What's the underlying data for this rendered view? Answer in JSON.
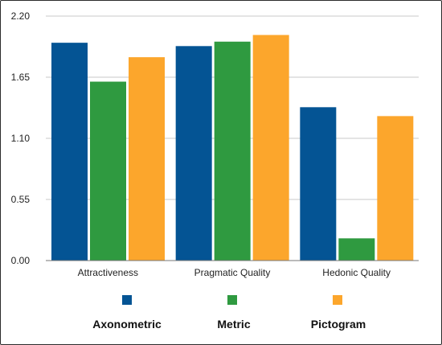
{
  "chart_data": {
    "type": "bar",
    "categories": [
      "Attractiveness",
      "Pragmatic Quality",
      "Hedonic Quality"
    ],
    "series": [
      {
        "name": "Axonometric",
        "values": [
          1.96,
          1.93,
          1.38
        ],
        "color": "#045494"
      },
      {
        "name": "Metric",
        "values": [
          1.61,
          1.97,
          0.2
        ],
        "color": "#2f9a40"
      },
      {
        "name": "Pictogram",
        "values": [
          1.83,
          2.03,
          1.3
        ],
        "color": "#fca62c"
      }
    ],
    "yticks": [
      "0.00",
      "0.55",
      "1.10",
      "1.65",
      "2.20"
    ],
    "ylim": [
      0,
      2.2
    ],
    "grid": true,
    "legend_position": "bottom"
  }
}
